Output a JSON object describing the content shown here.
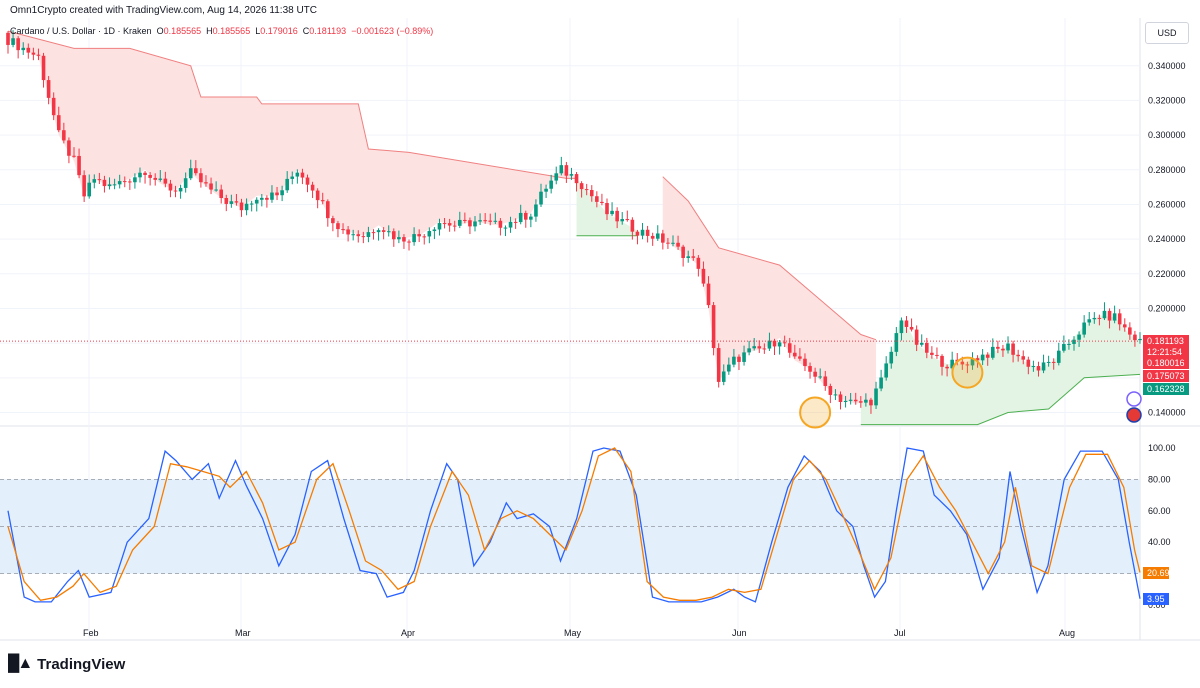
{
  "header": {
    "created": "Omn1Crypto created with TradingView.com, Aug 14, 2026 11:38 UTC"
  },
  "ohlc": {
    "symbol": "Cardano / U.S. Dollar · 1D · Kraken",
    "o_label": "O",
    "o": "0.185565",
    "h_label": "H",
    "h": "0.185565",
    "l_label": "L",
    "l": "0.179016",
    "c_label": "C",
    "c": "0.181193",
    "change": "−0.001623 (−0.89%)"
  },
  "currency": "USD",
  "brand": "TradingView",
  "colors": {
    "up": "#089981",
    "down": "#f23645",
    "stoch_k": "#2962ff",
    "stoch_d": "#f57c00",
    "cloud_down": "#fde2e2",
    "cloud_up": "#e4f4e4",
    "band": "#e3f0fb",
    "marker": "#f5a623"
  },
  "chart_data": [
    {
      "type": "candlestick",
      "title": "Cardano / U.S. Dollar",
      "ylim": [
        0.13,
        0.36
      ],
      "yticks": [
        0.14,
        0.16,
        0.18,
        0.2,
        0.22,
        0.24,
        0.26,
        0.28,
        0.3,
        0.32,
        0.34
      ],
      "ytick_labels": [
        "0.140000",
        "",
        "",
        "0.200000",
        "0.220000",
        "0.240000",
        "0.260000",
        "0.280000",
        "0.300000",
        "0.320000",
        "0.340000"
      ],
      "xtick_labels": [
        "Feb",
        "Mar",
        "Apr",
        "May",
        "Jun",
        "Jul",
        "Aug"
      ],
      "close_path": [
        [
          0,
          0.355
        ],
        [
          6,
          0.345
        ],
        [
          10,
          0.3
        ],
        [
          13,
          0.285
        ],
        [
          15,
          0.265
        ],
        [
          17,
          0.275
        ],
        [
          20,
          0.27
        ],
        [
          24,
          0.275
        ],
        [
          27,
          0.28
        ],
        [
          30,
          0.272
        ],
        [
          33,
          0.268
        ],
        [
          36,
          0.278
        ],
        [
          40,
          0.268
        ],
        [
          43,
          0.262
        ],
        [
          46,
          0.258
        ],
        [
          49,
          0.265
        ],
        [
          53,
          0.265
        ],
        [
          57,
          0.28
        ],
        [
          60,
          0.27
        ],
        [
          63,
          0.255
        ],
        [
          66,
          0.245
        ],
        [
          70,
          0.242
        ],
        [
          73,
          0.248
        ],
        [
          77,
          0.24
        ],
        [
          81,
          0.242
        ],
        [
          85,
          0.25
        ],
        [
          88,
          0.248
        ],
        [
          92,
          0.25
        ],
        [
          96,
          0.248
        ],
        [
          99,
          0.25
        ],
        [
          103,
          0.255
        ],
        [
          106,
          0.27
        ],
        [
          109,
          0.28
        ],
        [
          112,
          0.275
        ],
        [
          115,
          0.265
        ],
        [
          118,
          0.255
        ],
        [
          121,
          0.25
        ],
        [
          124,
          0.245
        ],
        [
          127,
          0.242
        ],
        [
          130,
          0.238
        ],
        [
          133,
          0.232
        ],
        [
          136,
          0.225
        ],
        [
          138,
          0.2
        ],
        [
          140,
          0.158
        ],
        [
          143,
          0.17
        ],
        [
          146,
          0.175
        ],
        [
          149,
          0.177
        ],
        [
          152,
          0.183
        ],
        [
          155,
          0.17
        ],
        [
          158,
          0.165
        ],
        [
          161,
          0.155
        ],
        [
          164,
          0.148
        ],
        [
          167,
          0.145
        ],
        [
          170,
          0.147
        ],
        [
          172,
          0.158
        ],
        [
          174,
          0.175
        ],
        [
          176,
          0.195
        ],
        [
          179,
          0.18
        ],
        [
          182,
          0.172
        ],
        [
          185,
          0.168
        ],
        [
          188,
          0.168
        ],
        [
          191,
          0.172
        ],
        [
          194,
          0.175
        ],
        [
          197,
          0.178
        ],
        [
          200,
          0.17
        ],
        [
          203,
          0.165
        ],
        [
          206,
          0.17
        ],
        [
          209,
          0.18
        ],
        [
          212,
          0.19
        ],
        [
          215,
          0.196
        ],
        [
          218,
          0.195
        ],
        [
          221,
          0.185
        ],
        [
          223,
          0.181
        ]
      ],
      "cloud_segments": [
        {
          "side": "resistance",
          "points": [
            [
              0,
              0.36
            ],
            [
              13,
              0.35
            ],
            [
              24,
              0.35
            ],
            [
              36,
              0.34
            ],
            [
              38,
              0.322
            ],
            [
              49,
              0.322
            ],
            [
              50,
              0.318
            ],
            [
              69,
              0.318
            ],
            [
              71,
              0.292
            ],
            [
              79,
              0.29
            ],
            [
              110,
              0.275
            ],
            [
              112,
              0.275
            ]
          ]
        },
        {
          "side": "support",
          "points": [
            [
              112,
              0.242
            ],
            [
              124,
              0.242
            ]
          ]
        },
        {
          "side": "resistance",
          "points": [
            [
              129,
              0.276
            ],
            [
              134,
              0.262
            ],
            [
              140,
              0.235
            ],
            [
              152,
              0.225
            ],
            [
              160,
              0.205
            ],
            [
              168,
              0.185
            ],
            [
              171,
              0.182
            ]
          ]
        },
        {
          "side": "support",
          "points": [
            [
              168,
              0.133
            ],
            [
              182,
              0.133
            ],
            [
              191,
              0.133
            ],
            [
              197,
              0.14
            ],
            [
              205,
              0.142
            ],
            [
              212,
              0.16
            ],
            [
              223,
              0.162
            ]
          ]
        }
      ],
      "price_labels": [
        {
          "value": 0.181193,
          "label": "0.181193",
          "color": "#f23645"
        },
        {
          "value": 0.180016,
          "label": "12:21:54",
          "color": "#f23645"
        },
        {
          "value": 0.180016,
          "label": "0.180016",
          "color": "#f23645"
        },
        {
          "value": 0.175073,
          "label": "0.175073",
          "color": "#f23645"
        },
        {
          "value": 0.162328,
          "label": "0.162328",
          "color": "#089981"
        }
      ],
      "markers": [
        {
          "x": 159,
          "y": 0.14
        },
        {
          "x": 189,
          "y": 0.163
        }
      ]
    },
    {
      "type": "line",
      "title": "Stochastic RSI",
      "ylim": [
        0,
        100
      ],
      "yticks": [
        0,
        20,
        40,
        60,
        80,
        100
      ],
      "ytick_labels": [
        "0.00",
        "",
        "40.00",
        "60.00",
        "80.00",
        "100.00"
      ],
      "band": [
        20,
        80
      ],
      "series": [
        {
          "key": "k",
          "last_label": "3.95",
          "values": [
            [
              0,
              60
            ],
            [
              3,
              5
            ],
            [
              5,
              2
            ],
            [
              8,
              2
            ],
            [
              11,
              15
            ],
            [
              13,
              22
            ],
            [
              15,
              5
            ],
            [
              19,
              8
            ],
            [
              22,
              40
            ],
            [
              26,
              55
            ],
            [
              29,
              98
            ],
            [
              31,
              92
            ],
            [
              34,
              80
            ],
            [
              37,
              90
            ],
            [
              39,
              68
            ],
            [
              42,
              92
            ],
            [
              44,
              76
            ],
            [
              47,
              55
            ],
            [
              50,
              25
            ],
            [
              53,
              45
            ],
            [
              56,
              85
            ],
            [
              59,
              92
            ],
            [
              62,
              55
            ],
            [
              65,
              22
            ],
            [
              68,
              20
            ],
            [
              70,
              5
            ],
            [
              73,
              8
            ],
            [
              75,
              22
            ],
            [
              78,
              60
            ],
            [
              81,
              90
            ],
            [
              83,
              80
            ],
            [
              86,
              25
            ],
            [
              89,
              40
            ],
            [
              92,
              65
            ],
            [
              94,
              55
            ],
            [
              97,
              58
            ],
            [
              100,
              50
            ],
            [
              102,
              28
            ],
            [
              105,
              55
            ],
            [
              108,
              98
            ],
            [
              110,
              100
            ],
            [
              113,
              98
            ],
            [
              116,
              70
            ],
            [
              119,
              5
            ],
            [
              122,
              2
            ],
            [
              125,
              2
            ],
            [
              128,
              2
            ],
            [
              131,
              5
            ],
            [
              134,
              10
            ],
            [
              136,
              5
            ],
            [
              138,
              2
            ],
            [
              141,
              40
            ],
            [
              144,
              75
            ],
            [
              147,
              95
            ],
            [
              150,
              85
            ],
            [
              153,
              60
            ],
            [
              156,
              50
            ],
            [
              158,
              25
            ],
            [
              160,
              5
            ],
            [
              162,
              15
            ],
            [
              164,
              60
            ],
            [
              166,
              100
            ],
            [
              169,
              98
            ],
            [
              171,
              70
            ],
            [
              174,
              60
            ],
            [
              177,
              45
            ],
            [
              180,
              10
            ],
            [
              183,
              30
            ],
            [
              185,
              85
            ],
            [
              187,
              50
            ],
            [
              190,
              8
            ],
            [
              192,
              25
            ],
            [
              195,
              80
            ],
            [
              198,
              98
            ],
            [
              202,
              98
            ],
            [
              205,
              80
            ],
            [
              207,
              40
            ],
            [
              209,
              3.95
            ]
          ]
        },
        {
          "key": "d",
          "last_label": "20.69",
          "values": [
            [
              0,
              50
            ],
            [
              3,
              15
            ],
            [
              6,
              3
            ],
            [
              9,
              5
            ],
            [
              12,
              12
            ],
            [
              14,
              20
            ],
            [
              17,
              8
            ],
            [
              20,
              12
            ],
            [
              23,
              35
            ],
            [
              27,
              50
            ],
            [
              30,
              90
            ],
            [
              33,
              88
            ],
            [
              36,
              85
            ],
            [
              39,
              82
            ],
            [
              41,
              75
            ],
            [
              44,
              85
            ],
            [
              47,
              65
            ],
            [
              50,
              35
            ],
            [
              53,
              40
            ],
            [
              57,
              80
            ],
            [
              60,
              90
            ],
            [
              63,
              60
            ],
            [
              66,
              28
            ],
            [
              69,
              22
            ],
            [
              72,
              10
            ],
            [
              75,
              15
            ],
            [
              78,
              50
            ],
            [
              82,
              85
            ],
            [
              85,
              70
            ],
            [
              88,
              35
            ],
            [
              91,
              55
            ],
            [
              94,
              60
            ],
            [
              97,
              55
            ],
            [
              100,
              45
            ],
            [
              103,
              35
            ],
            [
              106,
              60
            ],
            [
              109,
              95
            ],
            [
              112,
              100
            ],
            [
              115,
              85
            ],
            [
              118,
              15
            ],
            [
              121,
              5
            ],
            [
              124,
              3
            ],
            [
              127,
              3
            ],
            [
              130,
              5
            ],
            [
              133,
              10
            ],
            [
              136,
              8
            ],
            [
              139,
              10
            ],
            [
              142,
              45
            ],
            [
              145,
              80
            ],
            [
              148,
              92
            ],
            [
              151,
              80
            ],
            [
              154,
              58
            ],
            [
              157,
              35
            ],
            [
              160,
              10
            ],
            [
              163,
              30
            ],
            [
              166,
              80
            ],
            [
              169,
              95
            ],
            [
              172,
              75
            ],
            [
              175,
              60
            ],
            [
              178,
              40
            ],
            [
              181,
              20
            ],
            [
              184,
              40
            ],
            [
              186,
              75
            ],
            [
              189,
              25
            ],
            [
              192,
              20
            ],
            [
              196,
              75
            ],
            [
              199,
              96
            ],
            [
              203,
              96
            ],
            [
              206,
              75
            ],
            [
              208,
              35
            ],
            [
              209,
              20.69
            ]
          ]
        }
      ]
    }
  ]
}
